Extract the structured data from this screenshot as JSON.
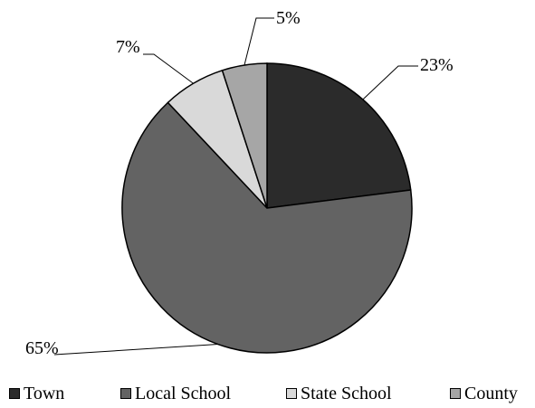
{
  "chart_data": {
    "type": "pie",
    "title": "",
    "categories": [
      "Town",
      "Local School",
      "State School",
      "County"
    ],
    "values": [
      23,
      65,
      7,
      5
    ],
    "data_labels": [
      "23%",
      "65%",
      "7%",
      "5%"
    ],
    "colors": [
      "#2b2b2b",
      "#636363",
      "#d9d9d9",
      "#a6a6a6"
    ],
    "legend_placement": "bottom",
    "start_angle_deg": 0,
    "direction": "clockwise"
  }
}
